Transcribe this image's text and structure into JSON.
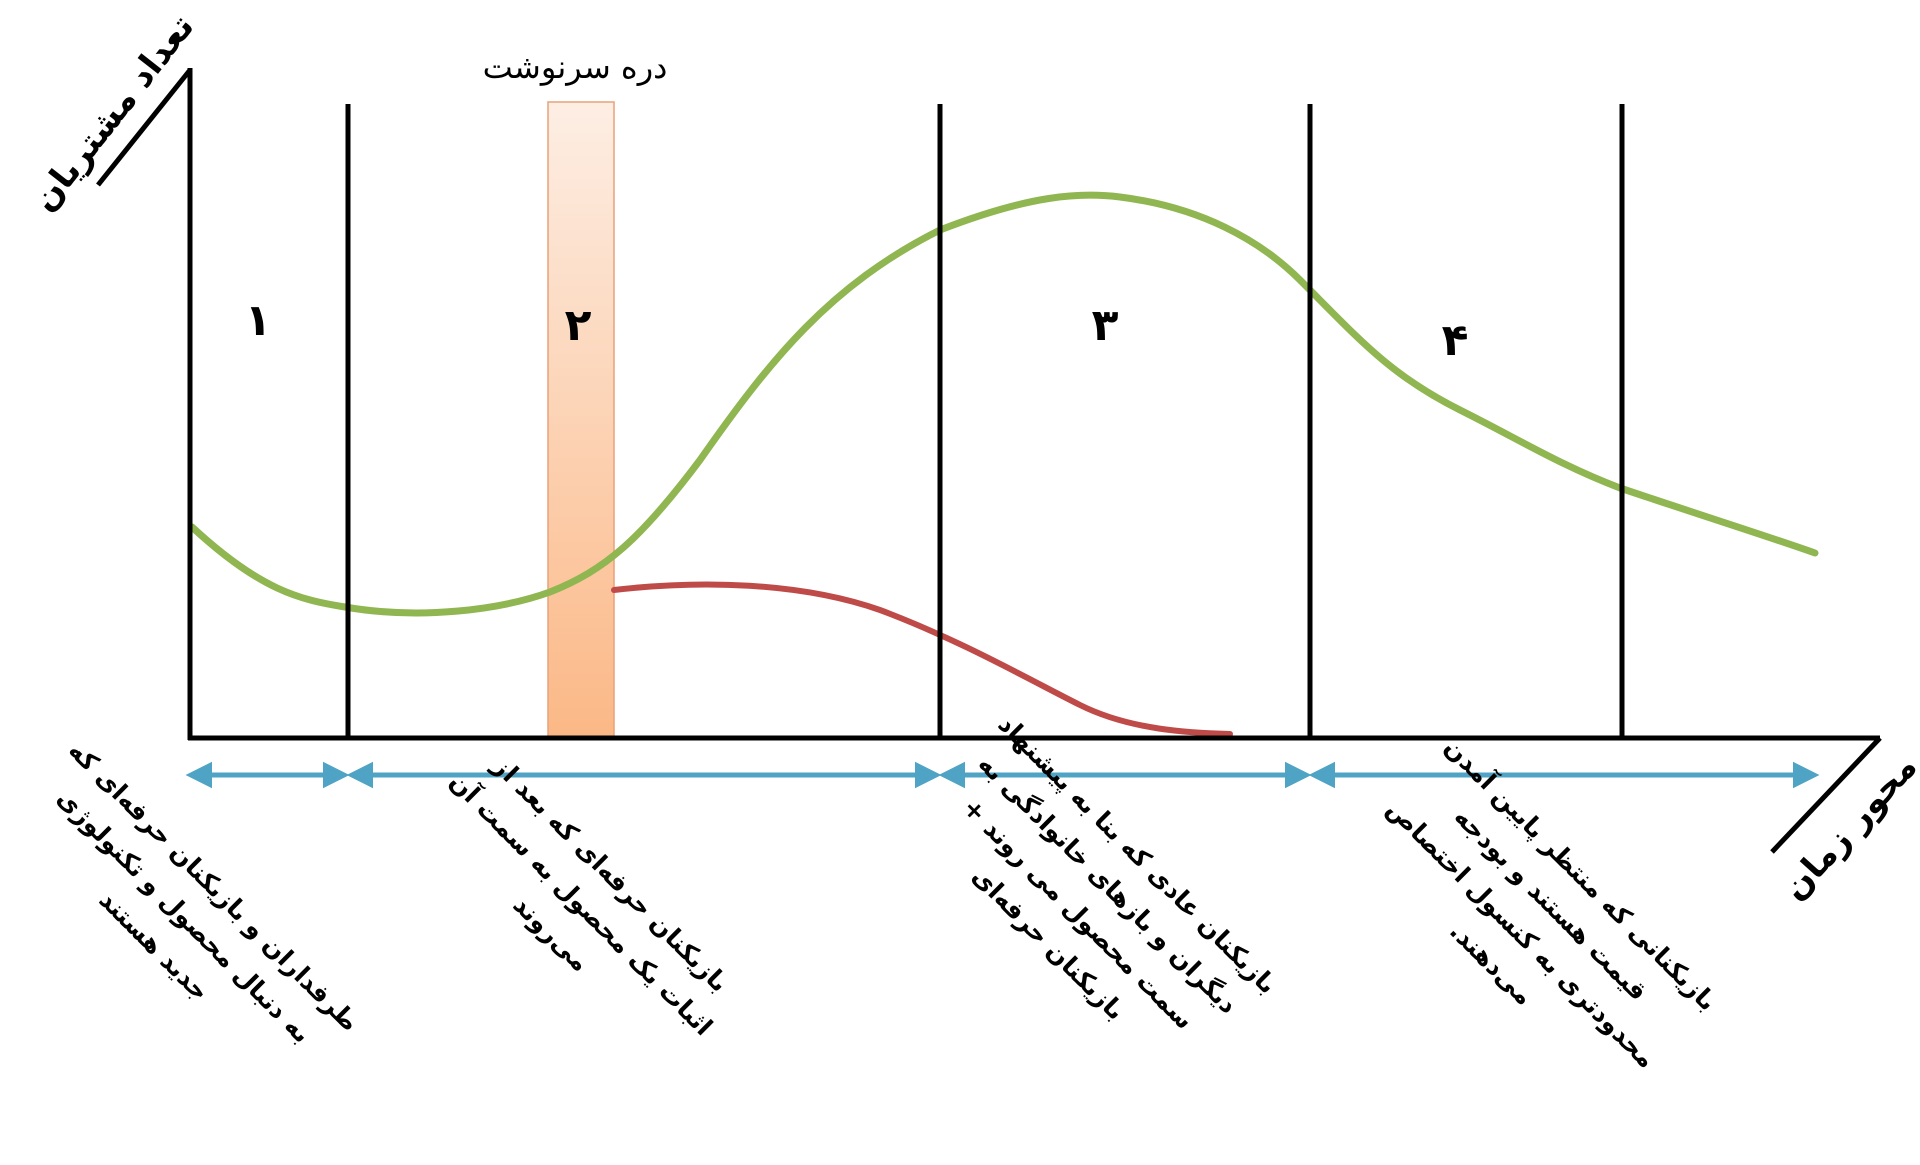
{
  "y_axis_label": "تعداد مشتریان",
  "x_axis_label": "محور زمان",
  "chasm_label": "دره سرنوشت",
  "phases": [
    {
      "number": "۱",
      "description": [
        "طرفداران و بازیکنان حرفه‌ای که",
        "به دنبال محصول و تکنولوژی",
        "جدید هستند"
      ]
    },
    {
      "number": "۲",
      "description": [
        "بازیکنان حرفه‌ای که بعد از",
        "اثبات یک محصول به سمت آن",
        "می‌روند"
      ]
    },
    {
      "number": "۳",
      "description": [
        "بازیکنان عادی که بنا به پیشنهاد",
        "دیگران و بازهای خانوادگی به",
        "سمت محصول می روند +",
        "بازیکنان حرفه‌ای"
      ]
    },
    {
      "number": "۴",
      "description": [
        "بازیکنانی که منتظر پایین آمدن",
        "قیمت هستند و بودجه",
        "محدودتری به کنسول اختصاص",
        "می‌دهند."
      ]
    }
  ],
  "colors": {
    "green_curve": "#8fb650",
    "red_curve": "#bf4b48",
    "arrows": "#4fa3c4",
    "chasm_top": "#fdeee4",
    "chasm_bottom": "#fbb886",
    "chasm_border": "#e8a27a",
    "lines": "#000000"
  }
}
